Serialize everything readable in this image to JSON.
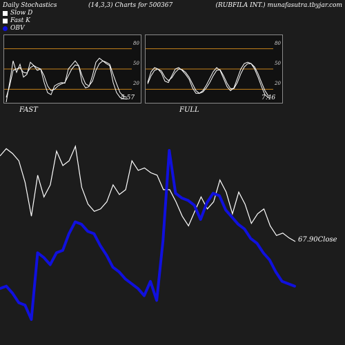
{
  "header": {
    "title": "Daily Stochastics",
    "params": "(14,3,3) Charts for 500367",
    "company": "(RUBFILA INT.) munafasutra.tbyjar.com"
  },
  "legend": [
    {
      "label": "Slow  D",
      "color": "#ffffff"
    },
    {
      "label": "Fast K",
      "color": "#ffffff"
    },
    {
      "label": "OBV",
      "color": "#1010dd"
    }
  ],
  "chart_data": [
    {
      "type": "line",
      "title": "FAST",
      "ylim": [
        0,
        100
      ],
      "grid_levels": [
        20,
        50,
        80
      ],
      "grid_labels": [
        "80",
        "50",
        "20"
      ],
      "last_value_label": "5.57",
      "series": [
        {
          "values": [
            1,
            30,
            62,
            45,
            57,
            38,
            42,
            60,
            55,
            48,
            50,
            30,
            15,
            12,
            25,
            28,
            30,
            29,
            50,
            56,
            62,
            55,
            30,
            22,
            24,
            40,
            60,
            66,
            62,
            58,
            55,
            30,
            15,
            8,
            6,
            5.57
          ]
        },
        {
          "values": [
            8,
            25,
            48,
            50,
            52,
            45,
            44,
            52,
            55,
            52,
            50,
            40,
            25,
            18,
            20,
            25,
            28,
            30,
            40,
            50,
            56,
            55,
            40,
            28,
            25,
            32,
            48,
            58,
            62,
            60,
            57,
            42,
            28,
            15,
            10,
            8
          ]
        }
      ]
    },
    {
      "type": "line",
      "title": "FULL",
      "ylim": [
        0,
        100
      ],
      "grid_levels": [
        20,
        50,
        80
      ],
      "grid_labels": [
        "80",
        "50",
        "20"
      ],
      "last_value_label": "7.46",
      "series": [
        {
          "values": [
            30,
            46,
            52,
            50,
            44,
            32,
            30,
            40,
            50,
            52,
            48,
            42,
            35,
            22,
            14,
            14,
            18,
            26,
            36,
            46,
            52,
            48,
            36,
            24,
            18,
            22,
            36,
            50,
            58,
            60,
            58,
            50,
            38,
            24,
            12,
            7.46
          ]
        },
        {
          "values": [
            28,
            40,
            48,
            50,
            47,
            38,
            33,
            37,
            45,
            50,
            49,
            45,
            38,
            28,
            18,
            14,
            16,
            22,
            30,
            40,
            48,
            49,
            40,
            29,
            21,
            21,
            30,
            43,
            53,
            58,
            58,
            53,
            43,
            30,
            18,
            10
          ]
        }
      ]
    },
    {
      "type": "line",
      "close_label": "67.90Close",
      "series": [
        {
          "name": "Close",
          "color": "#ffffff",
          "values": [
            75.0,
            75.6,
            75.2,
            74.6,
            72.8,
            70.0,
            73.4,
            71.6,
            72.6,
            75.4,
            74.2,
            74.6,
            75.8,
            72.4,
            71.0,
            70.4,
            70.6,
            71.2,
            72.6,
            71.8,
            72.2,
            74.6,
            73.8,
            74.0,
            73.6,
            73.4,
            72.2,
            72.2,
            71.2,
            70.0,
            69.2,
            70.4,
            71.6,
            70.6,
            71.2,
            73.0,
            72.0,
            70.2,
            72.0,
            71.0,
            69.4,
            70.2,
            70.6,
            69.2,
            68.4,
            68.6,
            68.2,
            67.9
          ]
        },
        {
          "name": "OBV",
          "color": "#1010dd",
          "values": [
            40,
            41,
            38,
            34,
            33,
            27,
            55,
            53,
            50,
            55,
            56,
            63,
            68,
            67,
            64,
            63,
            58,
            54,
            49,
            47,
            44,
            42,
            40,
            37,
            43,
            35,
            60,
            98,
            80,
            78,
            77,
            75,
            69,
            76,
            80,
            79,
            73,
            70,
            67,
            65,
            61,
            59,
            55,
            52,
            47,
            43,
            42,
            41
          ]
        }
      ]
    }
  ]
}
